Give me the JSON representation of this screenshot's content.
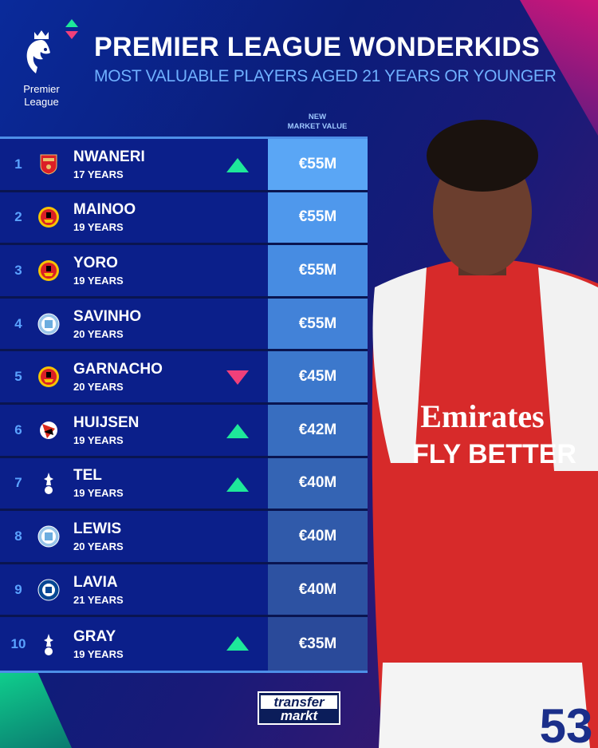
{
  "header": {
    "title": "PREMIER LEAGUE WONDERKIDS",
    "subtitle": "MOST VALUABLE PLAYERS AGED 21 YEARS OR YOUNGER",
    "logo_text": [
      "Premier",
      "League"
    ]
  },
  "column_header": [
    "NEW",
    "MARKET VALUE"
  ],
  "colors": {
    "up": "#1ee89a",
    "down": "#f0407a",
    "rank": "#5aa2ff",
    "row_bg": "#0b1f8a"
  },
  "players": [
    {
      "rank": "1",
      "name": "NWANERI",
      "age": "17 YEARS",
      "club": "arsenal",
      "trend": "up",
      "value": "€55M",
      "value_color": "#5aa6f5"
    },
    {
      "rank": "2",
      "name": "MAINOO",
      "age": "19 YEARS",
      "club": "manchester-united",
      "trend": "none",
      "value": "€55M",
      "value_color": "#4f98ec"
    },
    {
      "rank": "3",
      "name": "YORO",
      "age": "19 YEARS",
      "club": "manchester-united",
      "trend": "none",
      "value": "€55M",
      "value_color": "#478ce2"
    },
    {
      "rank": "4",
      "name": "SAVINHO",
      "age": "20 YEARS",
      "club": "manchester-city",
      "trend": "none",
      "value": "€55M",
      "value_color": "#4282d8"
    },
    {
      "rank": "5",
      "name": "GARNACHO",
      "age": "20 YEARS",
      "club": "manchester-united",
      "trend": "down",
      "value": "€45M",
      "value_color": "#3c78cc"
    },
    {
      "rank": "6",
      "name": "HUIJSEN",
      "age": "19 YEARS",
      "club": "bournemouth",
      "trend": "up",
      "value": "€42M",
      "value_color": "#386ec0"
    },
    {
      "rank": "7",
      "name": "TEL",
      "age": "19 YEARS",
      "club": "tottenham",
      "trend": "up",
      "value": "€40M",
      "value_color": "#3464b4"
    },
    {
      "rank": "8",
      "name": "LEWIS",
      "age": "20 YEARS",
      "club": "manchester-city",
      "trend": "none",
      "value": "€40M",
      "value_color": "#305aaa"
    },
    {
      "rank": "9",
      "name": "LAVIA",
      "age": "21 YEARS",
      "club": "chelsea",
      "trend": "none",
      "value": "€40M",
      "value_color": "#2d52a2"
    },
    {
      "rank": "10",
      "name": "GRAY",
      "age": "19 YEARS",
      "club": "tottenham",
      "trend": "up",
      "value": "€35M",
      "value_color": "#2a4a9a"
    }
  ],
  "photo": {
    "sponsor": "Emirates",
    "tagline": "FLY BETTER",
    "number": "53"
  },
  "footer": {
    "brand": [
      "transfer",
      "markt"
    ]
  }
}
